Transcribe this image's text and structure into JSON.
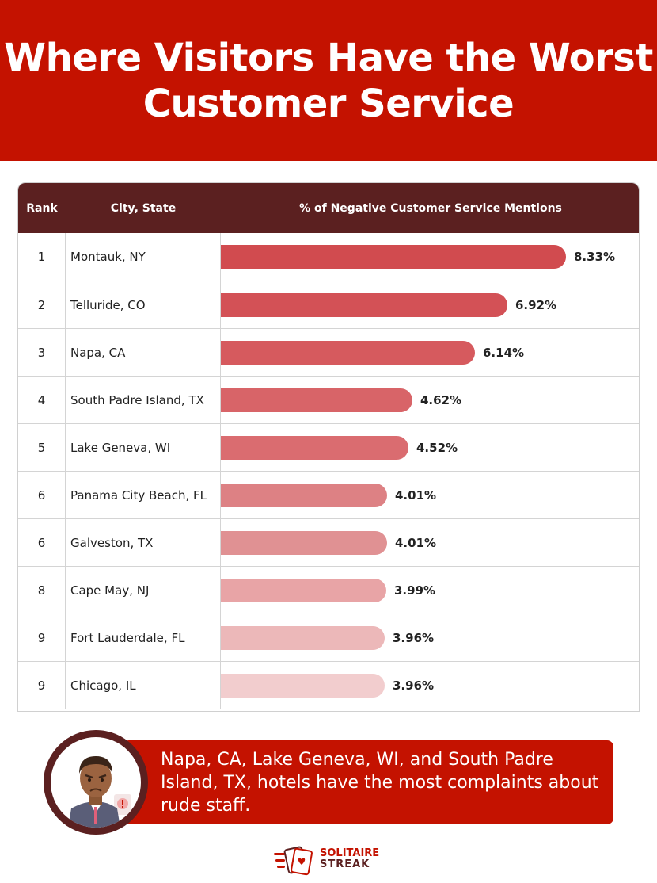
{
  "header": {
    "title": "Where Visitors Have the Worst Customer Service"
  },
  "table": {
    "columns": [
      "Rank",
      "City, State",
      "% of Negative Customer Service Mentions"
    ]
  },
  "chart_data": {
    "type": "bar",
    "categories": [
      "Montauk, NY",
      "Telluride, CO",
      "Napa, CA",
      "South Padre Island, TX",
      "Lake Geneva, WI",
      "Panama City Beach, FL",
      "Galveston, TX",
      "Cape May, NJ",
      "Fort Lauderdale, FL",
      "Chicago, IL"
    ],
    "ranks": [
      "1",
      "2",
      "3",
      "4",
      "5",
      "6",
      "6",
      "8",
      "9",
      "9"
    ],
    "values": [
      8.33,
      6.92,
      6.14,
      4.62,
      4.52,
      4.01,
      4.01,
      3.99,
      3.96,
      3.96
    ],
    "value_labels": [
      "8.33%",
      "6.92%",
      "6.14%",
      "4.62%",
      "4.52%",
      "4.01%",
      "4.01%",
      "3.99%",
      "3.96%",
      "3.96%"
    ],
    "bar_colors": [
      "#d14b4f",
      "#d35156",
      "#d65a5e",
      "#d86468",
      "#da6c70",
      "#dd8184",
      "#e09193",
      "#e8a4a6",
      "#ecb8b9",
      "#f2cdce"
    ]
  },
  "callout": {
    "text": "Napa, CA, Lake Geneva, WI, and South Padre Island, TX, hotels have the most complaints about rude staff."
  },
  "brand": {
    "line1": "SOLITAIRE",
    "line2": "STREAK"
  },
  "colors": {
    "primary": "#c41200",
    "dark": "#5b2020"
  }
}
